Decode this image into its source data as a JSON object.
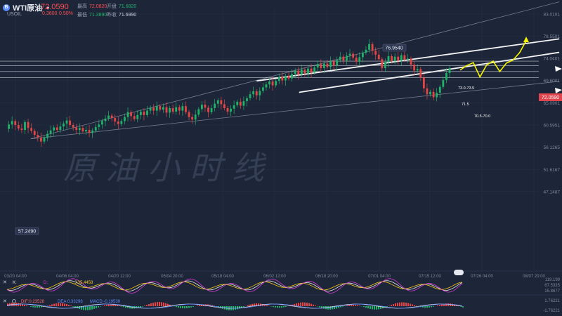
{
  "header": {
    "symbol": "WTI原油",
    "ticker": "USOIL",
    "price": "72.0590",
    "change": "0.3600",
    "change_pct": "0.50%",
    "high_label": "最高",
    "high": "72.0820",
    "open_label": "开盘",
    "open": "71.6820",
    "low_label": "最低",
    "low": "71.3890",
    "prev_label": "昨收",
    "prev": "71.6990"
  },
  "chart_data": {
    "type": "line",
    "title": "",
    "watermark": "原油小时线",
    "y_axis_ticks": [
      "83.0101",
      "78.5501",
      "74.0401",
      "69.6001",
      "65.0901",
      "60.5951",
      "56.1265",
      "51.6167",
      "47.1487"
    ],
    "y_axis_right_values": [
      83.0101,
      78.5501,
      74.0401,
      69.6001,
      65.0901,
      60.5951,
      56.1265,
      51.6167,
      47.1487
    ],
    "x_axis_ticks": [
      "03/20 04:00",
      "04/06 04:00",
      "04/20 12:00",
      "05/04 20:00",
      "05/18 04:00",
      "06/02 12:00",
      "06/18 20:00",
      "07/01 04:00",
      "07/15 12:00",
      "07/26 04:00",
      "08/07 20:00"
    ],
    "ylim": [
      45.0,
      84.5
    ],
    "current_price_label": "72.0590",
    "annotations": {
      "high_label": "76.9540",
      "low_label": "57.2490",
      "resistance_label": "73.0-73.5",
      "mid_label": "71.5",
      "support_label": "70.5-70.0"
    },
    "price_series_hourly": [
      59.8,
      60.7,
      61.4,
      60.6,
      59.9,
      59.6,
      61.2,
      60.0,
      59.4,
      58.6,
      58.1,
      57.25,
      58.0,
      58.8,
      59.5,
      60.1,
      59.6,
      60.3,
      60.9,
      61.5,
      60.6,
      60.1,
      59.6,
      60.0,
      59.3,
      59.6,
      59.0,
      59.5,
      60.2,
      60.7,
      61.4,
      61.9,
      62.5,
      62.0,
      61.3,
      60.8,
      61.4,
      62.2,
      63.2,
      62.4,
      61.8,
      62.6,
      63.3,
      62.6,
      63.5,
      64.1,
      63.5,
      64.4,
      63.7,
      64.2,
      63.1,
      64.0,
      63.3,
      64.2,
      63.5,
      64.4,
      63.2,
      62.2,
      61.7,
      62.7,
      63.8,
      64.7,
      64.1,
      63.2,
      64.0,
      64.9,
      65.6,
      64.8,
      64.0,
      63.3,
      63.9,
      64.6,
      65.3,
      64.5,
      65.4,
      66.0,
      66.8,
      67.4,
      66.6,
      67.5,
      68.2,
      68.8,
      69.4,
      68.6,
      69.5,
      70.3,
      69.6,
      70.5,
      70.0,
      70.9,
      71.6,
      70.8,
      71.8,
      71.0,
      72.0,
      71.2,
      72.2,
      72.9,
      72.1,
      73.0,
      72.3,
      73.5,
      72.6,
      73.7,
      74.4,
      73.6,
      74.6,
      75.0,
      74.2,
      73.4,
      74.3,
      75.2,
      75.8,
      76.954,
      75.6,
      74.8,
      73.9,
      72.1,
      73.3,
      74.5,
      73.5,
      74.4,
      73.6,
      74.7,
      73.8,
      74.0,
      72.8,
      71.6,
      71.9,
      70.2,
      68.0,
      66.8,
      67.3,
      66.2,
      67.1,
      68.3,
      69.7,
      71.1,
      72.06
    ],
    "projection_path": [
      [
        0,
        71.7
      ],
      [
        2,
        72.6
      ],
      [
        4,
        73.2
      ],
      [
        6,
        70.3
      ],
      [
        8,
        72.7
      ],
      [
        10,
        73.5
      ],
      [
        12,
        71.4
      ],
      [
        14,
        73.1
      ],
      [
        16,
        73.7
      ],
      [
        18,
        75.2
      ],
      [
        20,
        77.6
      ]
    ],
    "trendlines": [
      {
        "name": "outer-upper",
        "from": [
          "03/25",
          57.8
        ],
        "to": [
          "08/07",
          84.0
        ],
        "color": "#8a92a4"
      },
      {
        "name": "lower-base",
        "from": [
          "03/25",
          57.8
        ],
        "to": [
          "08/07",
          68.8
        ],
        "color": "#8a92a4"
      },
      {
        "name": "channel-upper",
        "from": [
          "05/28",
          69.5
        ],
        "to": [
          "08/07",
          77.2
        ],
        "color": "#ffffff"
      },
      {
        "name": "channel-lower",
        "from": [
          "06/10",
          67.2
        ],
        "to": [
          "08/07",
          74.4
        ],
        "color": "#ffffff"
      }
    ],
    "horizontal_levels": [
      73.5,
      72.6,
      71.4,
      70.2
    ],
    "indicators": {
      "kdj_labels": [
        "K:",
        "D:",
        "J:35.4458"
      ],
      "kdj_right_ticks": [
        "119.199",
        "67.5335",
        "15.8677"
      ],
      "macd_labels": [
        "DIF:0.23528",
        "DEA:0.33298",
        "MACD:-0.19539"
      ],
      "macd_right_ticks": [
        "1.76221",
        "-1.76221"
      ]
    },
    "colors": {
      "up": "#1fb36a",
      "down": "#e54545",
      "background": "#1d2538",
      "projection": "#f5f500",
      "price_tag": "#e0454d"
    }
  }
}
